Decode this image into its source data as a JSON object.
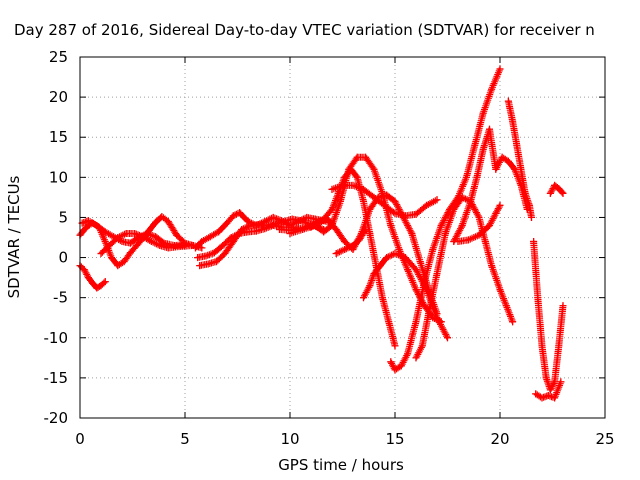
{
  "chart_data": {
    "type": "scatter",
    "title": "Day 287 of 2016, Sidereal Day-to-day VTEC variation (SDTVAR) for receiver n",
    "xlabel": "GPS time / hours",
    "ylabel": "SDTVAR / TECUs",
    "xlim": [
      0,
      25
    ],
    "ylim": [
      -20,
      25
    ],
    "xticks": [
      "0",
      "5",
      "10",
      "15",
      "20",
      "25"
    ],
    "yticks": [
      "-20",
      "-15",
      "-10",
      "-5",
      "0",
      "5",
      "10",
      "15",
      "20",
      "25"
    ],
    "grid": true,
    "marker": "+",
    "color": "#ff0000",
    "series": [
      {
        "x": [
          0,
          0.3,
          0.6,
          0.9,
          1.2,
          1.5,
          1.8,
          2.1,
          2.4,
          2.7,
          3.0,
          3.3,
          3.6,
          3.9,
          4.2,
          4.6,
          5.0,
          5.4,
          5.8
        ],
        "y": [
          2.8,
          3.8,
          4.3,
          3.8,
          2.0,
          0.0,
          -1.0,
          -0.5,
          0.6,
          1.5,
          2.4,
          3.4,
          4.4,
          5.1,
          4.5,
          2.8,
          1.8,
          1.5,
          1.2
        ]
      },
      {
        "x": [
          0,
          0.2,
          0.4,
          0.6,
          0.8,
          1.0,
          1.2
        ],
        "y": [
          -1.0,
          -1.5,
          -2.5,
          -3.2,
          -3.8,
          -3.5,
          -3.0
        ]
      },
      {
        "x": [
          0.1,
          0.4,
          0.8,
          1.2,
          1.6,
          2.0,
          2.4,
          2.8,
          3.2,
          3.6,
          4.0,
          4.5,
          5.0
        ],
        "y": [
          4.3,
          4.6,
          4.0,
          3.2,
          2.6,
          2.0,
          1.8,
          2.5,
          3.0,
          2.6,
          1.8,
          1.5,
          1.6
        ]
      },
      {
        "x": [
          1.0,
          1.4,
          1.8,
          2.2,
          2.6,
          3.0,
          3.4,
          3.8,
          4.2,
          4.8,
          5.4
        ],
        "y": [
          0.5,
          1.5,
          2.5,
          3.0,
          3.0,
          2.6,
          2.0,
          1.5,
          1.2,
          1.4,
          1.5
        ]
      },
      {
        "x": [
          5.5,
          5.8,
          6.2,
          6.6,
          7.0,
          7.3,
          7.6,
          8.0,
          8.4,
          8.8,
          9.2,
          9.6,
          10.0,
          10.4,
          10.8,
          11.2,
          11.6,
          12.0
        ],
        "y": [
          1.2,
          2.0,
          2.6,
          3.2,
          4.3,
          5.2,
          5.6,
          4.5,
          4.0,
          4.5,
          5.0,
          4.6,
          4.0,
          4.5,
          5.0,
          4.8,
          4.6,
          4.3
        ]
      },
      {
        "x": [
          5.6,
          6.0,
          6.4,
          6.8,
          7.2,
          7.6,
          8.0,
          8.4,
          8.8,
          9.2,
          9.6,
          10.0,
          10.4
        ],
        "y": [
          0.0,
          0.2,
          0.6,
          1.5,
          2.5,
          3.0,
          3.2,
          3.3,
          3.6,
          4.0,
          3.8,
          3.8,
          3.6
        ]
      },
      {
        "x": [
          5.7,
          6.1,
          6.5,
          6.9,
          7.3,
          7.7,
          8.1,
          8.5,
          8.9,
          9.3,
          9.7,
          10.1,
          10.5,
          10.9,
          11.3,
          11.6
        ],
        "y": [
          -1.0,
          -0.8,
          -0.5,
          0.5,
          2.0,
          3.5,
          4.0,
          4.1,
          4.0,
          4.2,
          4.5,
          4.8,
          4.6,
          4.2,
          3.8,
          3.5
        ]
      },
      {
        "x": [
          9.5,
          10.0,
          10.5,
          11.0,
          11.5,
          12.0,
          12.3,
          12.6,
          12.9,
          13.2,
          13.5,
          13.8,
          14.1,
          14.4,
          14.7,
          15.0
        ],
        "y": [
          3.5,
          3.4,
          3.6,
          4.0,
          4.5,
          6.0,
          8.0,
          10.0,
          11.0,
          10.0,
          7.0,
          3.0,
          -1.0,
          -5.0,
          -8.0,
          -11.0
        ]
      },
      {
        "x": [
          10.0,
          10.6,
          11.2,
          11.6,
          12.0,
          12.4,
          12.8,
          13.2,
          13.6,
          14.0,
          14.4,
          14.8,
          15.2,
          15.6,
          16.0,
          16.4,
          16.8,
          17.2
        ],
        "y": [
          3.0,
          3.5,
          4.0,
          3.2,
          4.0,
          7.0,
          11.0,
          12.5,
          12.5,
          11.0,
          8.0,
          4.0,
          1.0,
          -1.5,
          -4.0,
          -6.0,
          -7.5,
          -8.0
        ]
      },
      {
        "x": [
          11.0,
          11.4,
          11.8,
          12.2,
          12.6,
          13.0,
          13.4,
          13.8,
          14.2,
          14.6,
          15.0,
          15.4,
          15.8,
          16.2,
          16.6,
          17.0
        ],
        "y": [
          3.8,
          4.5,
          4.8,
          3.5,
          2.0,
          1.0,
          3.0,
          6.0,
          7.5,
          7.8,
          7.0,
          5.0,
          3.0,
          -0.5,
          -4.0,
          -7.0
        ]
      },
      {
        "x": [
          12.0,
          12.5,
          13.0,
          13.5,
          14.0,
          14.5,
          15.0,
          15.5,
          16.0,
          16.5,
          17.0
        ],
        "y": [
          8.5,
          9.0,
          9.0,
          8.5,
          7.5,
          6.5,
          5.5,
          5.2,
          5.4,
          6.5,
          7.2
        ]
      },
      {
        "x": [
          12.2,
          12.6,
          13.0,
          13.3,
          13.6
        ],
        "y": [
          0.5,
          1.0,
          1.5,
          2.2,
          3.5
        ]
      },
      {
        "x": [
          13.5,
          13.8,
          14.0,
          14.3,
          14.6,
          15.0,
          15.5,
          16.0,
          16.5,
          17.0,
          17.5
        ],
        "y": [
          -5.0,
          -3.5,
          -2.0,
          -1.0,
          0.0,
          0.5,
          0.0,
          -1.5,
          -4.0,
          -7.5,
          -10.0
        ]
      },
      {
        "x": [
          14.8,
          15.0,
          15.3,
          15.6,
          16.0,
          16.4,
          16.8,
          17.2,
          17.6,
          18.0,
          18.4,
          18.8,
          19.2,
          19.6,
          20.0
        ],
        "y": [
          -13.0,
          -14.0,
          -13.5,
          -12.0,
          -8.0,
          -3.0,
          1.0,
          4.0,
          6.0,
          7.5,
          10.0,
          14.0,
          18.0,
          21.0,
          23.5
        ]
      },
      {
        "x": [
          16.0,
          16.3,
          16.6,
          17.0,
          17.4,
          17.8,
          18.2,
          18.6,
          19.0,
          19.3,
          19.6,
          20.0,
          20.3,
          20.6
        ],
        "y": [
          -12.5,
          -11.0,
          -7.0,
          -2.0,
          3.0,
          6.0,
          7.5,
          7.0,
          5.0,
          2.0,
          -1.0,
          -4.0,
          -6.0,
          -8.0
        ]
      },
      {
        "x": [
          17.8,
          18.2,
          18.6,
          18.9,
          19.2,
          19.5,
          19.8,
          20.1,
          20.4,
          20.7,
          21.0,
          21.3
        ],
        "y": [
          2.0,
          4.0,
          7.0,
          10.0,
          13.5,
          16.0,
          11.0,
          12.5,
          12.0,
          11.0,
          9.0,
          6.0
        ]
      },
      {
        "x": [
          18.0,
          18.5,
          19.0,
          19.5,
          19.8,
          20.0
        ],
        "y": [
          2.0,
          2.2,
          2.8,
          4.0,
          5.5,
          6.5
        ]
      },
      {
        "x": [
          20.4,
          20.6,
          20.8,
          21.0,
          21.2,
          21.4,
          21.5
        ],
        "y": [
          19.5,
          17.0,
          14.0,
          11.0,
          8.0,
          6.5,
          5.0
        ]
      },
      {
        "x": [
          21.6,
          21.8,
          22.0,
          22.2,
          22.4,
          22.6,
          22.8,
          23.0
        ],
        "y": [
          2.0,
          -5.0,
          -11.0,
          -15.0,
          -16.5,
          -15.5,
          -11.0,
          -6.0
        ]
      },
      {
        "x": [
          21.7,
          22.0,
          22.3,
          22.6,
          22.9
        ],
        "y": [
          -17.0,
          -17.5,
          -17.2,
          -17.5,
          -15.5
        ]
      },
      {
        "x": [
          22.4,
          22.6,
          22.8,
          23.0
        ],
        "y": [
          8.0,
          9.0,
          8.6,
          8.0
        ]
      }
    ]
  }
}
